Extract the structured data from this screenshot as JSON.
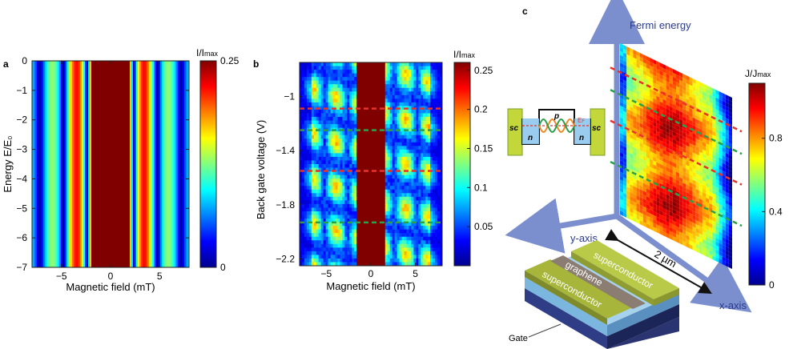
{
  "panel_a": {
    "letter": "a",
    "xlabel": "Magnetic field (mT)",
    "ylabel": "Energy E/E₀",
    "xticks": [
      -5,
      0,
      5
    ],
    "yticks": [
      0,
      -1,
      -2,
      -3,
      -4,
      -5,
      -6,
      -7
    ],
    "xlim": [
      -8,
      8
    ],
    "ylim": [
      -7,
      0
    ],
    "colorbar": {
      "title": "I/I",
      "title_sub": "max",
      "ticks": [
        0.25,
        0
      ],
      "range": [
        0,
        0.25
      ]
    }
  },
  "panel_b": {
    "letter": "b",
    "xlabel": "Magnetic field (mT)",
    "ylabel": "Back gate voltage (V)",
    "xticks": [
      -5,
      0,
      5
    ],
    "yticks": [
      -1,
      -1.4,
      -1.8,
      -2.2
    ],
    "xlim": [
      -8,
      8
    ],
    "ylim": [
      -2.25,
      -0.75
    ],
    "colorbar": {
      "title": "I/I",
      "title_sub": "max",
      "ticks": [
        0.25,
        0.2,
        0.15,
        0.1,
        0.05
      ],
      "range": [
        0,
        0.26
      ]
    },
    "dashed_lines": [
      {
        "y": -1.09,
        "color": "#e8322a"
      },
      {
        "y": -1.25,
        "color": "#2aa04a"
      },
      {
        "y": -1.55,
        "color": "#e8322a"
      },
      {
        "y": -1.93,
        "color": "#2aa04a"
      }
    ]
  },
  "panel_c": {
    "letter": "c",
    "z_axis_label": "Fermi energy",
    "y_axis_label": "y-axis",
    "x_axis_label": "x-axis",
    "scale_label": "2 µm",
    "colorbar": {
      "title": "J/J",
      "title_sub": "max",
      "ticks": [
        0.8,
        0.4,
        0
      ],
      "range": [
        0,
        1.1
      ]
    },
    "band_diagram": {
      "left": "sc",
      "right": "sc",
      "left_region": "n",
      "middle": "p",
      "right_region": "n",
      "fermi_label": "E",
      "fermi_sub": "F"
    },
    "device": {
      "top": "superconductor",
      "middle": "graphene",
      "bottom": "superconductor",
      "gate": "Gate"
    },
    "axis_color": "#7b8fcf"
  }
}
